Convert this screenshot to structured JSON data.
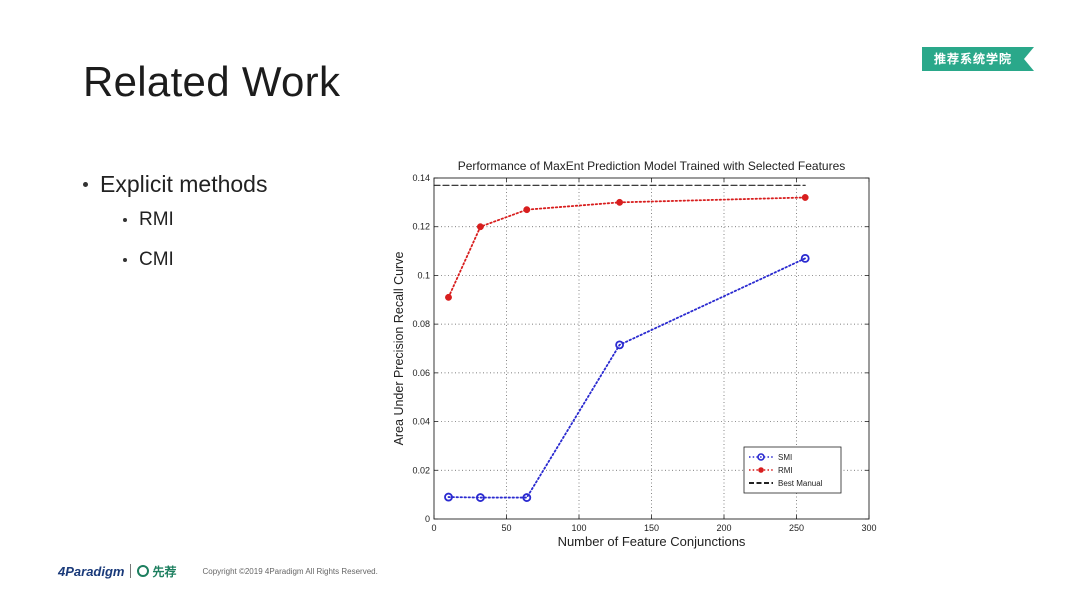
{
  "slide": {
    "title": "Related Work",
    "badge": "推荐系统学院",
    "bullets": [
      {
        "level": 1,
        "text": "Explicit methods"
      },
      {
        "level": 2,
        "text": "RMI"
      },
      {
        "level": 2,
        "text": "CMI"
      }
    ]
  },
  "footer": {
    "logo_a": "4Paradigm",
    "logo_b": "先荐",
    "copyright": "Copyright ©2019 4Paradigm All Rights Reserved."
  },
  "colors": {
    "badge": "#2aa88a",
    "smi": "#2a2ad0",
    "rmi": "#d81e1e",
    "best": "#222222"
  },
  "chart_data": {
    "type": "line",
    "title": "Performance of MaxEnt Prediction Model Trained with Selected Features",
    "xlabel": "Number of Feature Conjunctions",
    "ylabel": "Area Under Precision Recall Curve",
    "xlim": [
      0,
      300
    ],
    "ylim": [
      0,
      0.14
    ],
    "xticks": [
      "0",
      "50",
      "100",
      "150",
      "200",
      "250",
      "300"
    ],
    "yticks": [
      "0",
      "0.02",
      "0.04",
      "0.06",
      "0.08",
      "0.1",
      "0.12",
      "0.14"
    ],
    "grid": true,
    "legend_position": "bottom-right",
    "series": [
      {
        "name": "SMI",
        "marker": "circle-open",
        "line": "dotted",
        "x": [
          10,
          32,
          64,
          128,
          256
        ],
        "y": [
          0.009,
          0.0088,
          0.0088,
          0.0715,
          0.107
        ]
      },
      {
        "name": "RMI",
        "marker": "dot",
        "line": "dotted",
        "x": [
          10,
          32,
          64,
          128,
          256
        ],
        "y": [
          0.091,
          0.12,
          0.127,
          0.13,
          0.132
        ]
      },
      {
        "name": "Best Manual",
        "marker": "none",
        "line": "dashed",
        "x": [
          0,
          256
        ],
        "y": [
          0.137,
          0.137
        ]
      }
    ]
  }
}
